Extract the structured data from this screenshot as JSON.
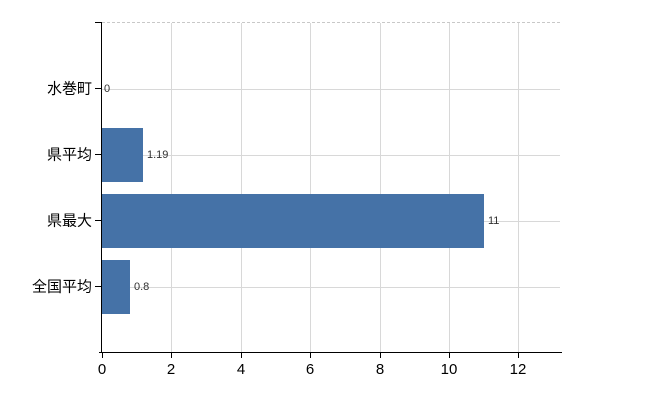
{
  "chart_data": {
    "type": "bar",
    "orientation": "horizontal",
    "title": "",
    "xlabel": "",
    "ylabel": "",
    "categories": [
      "水巻町",
      "県平均",
      "県最大",
      "全国平均"
    ],
    "values": [
      0,
      1.19,
      11,
      0.8
    ],
    "data_labels": [
      "0",
      "1.19",
      "11",
      "0.8"
    ],
    "x_ticks": [
      "0",
      "2",
      "4",
      "6",
      "8",
      "10",
      "12"
    ],
    "x_tick_values": [
      0,
      2,
      4,
      6,
      8,
      10,
      12
    ],
    "xlim": [
      0,
      13.2
    ],
    "grid": true,
    "legend": "none",
    "bar_color": "#4572a7",
    "grid_color": "#d8d8d8",
    "axis_color": "#000000",
    "plot_border_top_style": "dashed",
    "background_color": "#ffffff"
  }
}
